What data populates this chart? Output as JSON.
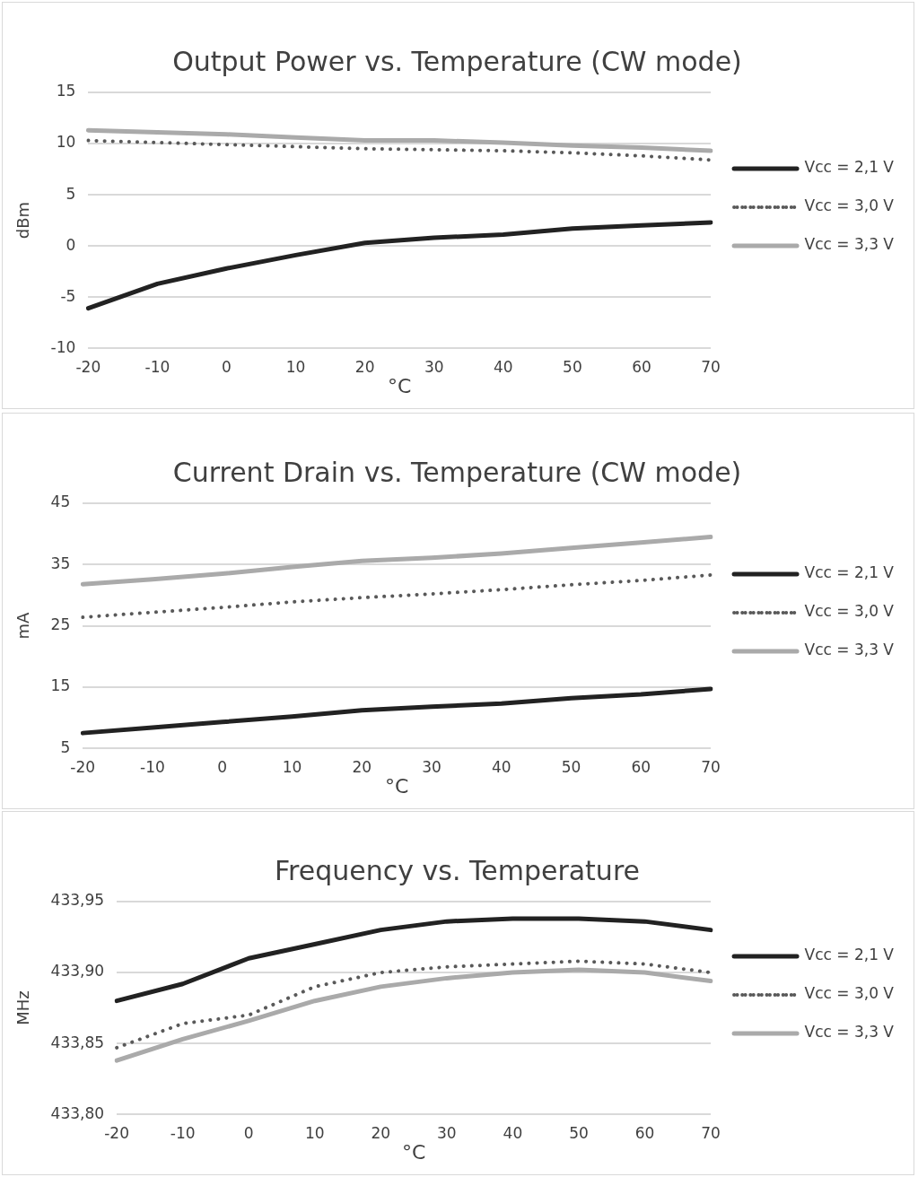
{
  "chart_data": [
    {
      "type": "line",
      "title": "Output Power vs. Temperature (CW mode)",
      "xlabel": "°C",
      "ylabel": "dBm",
      "categories": [
        "-20",
        "-10",
        "0",
        "10",
        "20",
        "30",
        "40",
        "50",
        "60",
        "70"
      ],
      "ylim": [
        -10,
        15
      ],
      "yticks": [
        -10,
        -5,
        0,
        5,
        10,
        15
      ],
      "grid": "y",
      "legend": "right",
      "series": [
        {
          "name": "Vcc = 2,1 V",
          "color": "#222222",
          "line_style": "solid",
          "values": [
            -6.1,
            -3.7,
            -2.2,
            -0.9,
            0.3,
            0.8,
            1.1,
            1.7,
            2.0,
            2.3
          ]
        },
        {
          "name": "Vcc = 3,0 V",
          "color": "#595959",
          "line_style": "dotted",
          "values": [
            10.3,
            10.1,
            9.9,
            9.7,
            9.5,
            9.4,
            9.3,
            9.1,
            8.8,
            8.4
          ]
        },
        {
          "name": "Vcc = 3,3 V",
          "color": "#aaaaaa",
          "line_style": "solid",
          "values": [
            11.3,
            11.1,
            10.9,
            10.6,
            10.3,
            10.3,
            10.1,
            9.8,
            9.6,
            9.3
          ]
        }
      ]
    },
    {
      "type": "line",
      "title": "Current Drain vs. Temperature (CW mode)",
      "xlabel": "°C",
      "ylabel": "mA",
      "categories": [
        "-20",
        "-10",
        "0",
        "10",
        "20",
        "30",
        "40",
        "50",
        "60",
        "70"
      ],
      "ylim": [
        5,
        45
      ],
      "yticks": [
        5,
        15,
        25,
        35,
        45
      ],
      "grid": "y",
      "legend": "right",
      "series": [
        {
          "name": "Vcc = 2,1 V",
          "color": "#222222",
          "line_style": "solid",
          "values": [
            7.5,
            8.4,
            9.3,
            10.2,
            11.2,
            11.8,
            12.3,
            13.2,
            13.8,
            14.7
          ]
        },
        {
          "name": "Vcc = 3,0 V",
          "color": "#595959",
          "line_style": "dotted",
          "values": [
            26.4,
            27.2,
            28.0,
            28.9,
            29.6,
            30.2,
            30.9,
            31.7,
            32.4,
            33.3
          ]
        },
        {
          "name": "Vcc = 3,3 V",
          "color": "#aaaaaa",
          "line_style": "solid",
          "values": [
            31.8,
            32.6,
            33.5,
            34.6,
            35.6,
            36.1,
            36.8,
            37.7,
            38.6,
            39.5
          ]
        }
      ]
    },
    {
      "type": "line",
      "title": "Frequency vs. Temperature",
      "xlabel": "°C",
      "ylabel": "MHz",
      "categories": [
        "-20",
        "-10",
        "0",
        "10",
        "20",
        "30",
        "40",
        "50",
        "60",
        "70"
      ],
      "ylim": [
        433.8,
        433.95
      ],
      "yticks": [
        {
          "value": 433.8,
          "label": "433,80"
        },
        {
          "value": 433.85,
          "label": "433,85"
        },
        {
          "value": 433.9,
          "label": "433,90"
        },
        {
          "value": 433.95,
          "label": "433,95"
        }
      ],
      "grid": "y",
      "legend": "right",
      "series": [
        {
          "name": "Vcc = 2,1 V",
          "color": "#222222",
          "line_style": "solid",
          "values": [
            433.88,
            433.892,
            433.91,
            433.92,
            433.93,
            433.936,
            433.938,
            433.938,
            433.936,
            433.93
          ]
        },
        {
          "name": "Vcc = 3,0 V",
          "color": "#595959",
          "line_style": "dotted",
          "values": [
            433.847,
            433.864,
            433.87,
            433.89,
            433.9,
            433.904,
            433.906,
            433.908,
            433.906,
            433.9
          ]
        },
        {
          "name": "Vcc = 3,3 V",
          "color": "#aaaaaa",
          "line_style": "solid",
          "values": [
            433.838,
            433.853,
            433.866,
            433.88,
            433.89,
            433.896,
            433.9,
            433.902,
            433.9,
            433.894
          ]
        }
      ]
    }
  ]
}
